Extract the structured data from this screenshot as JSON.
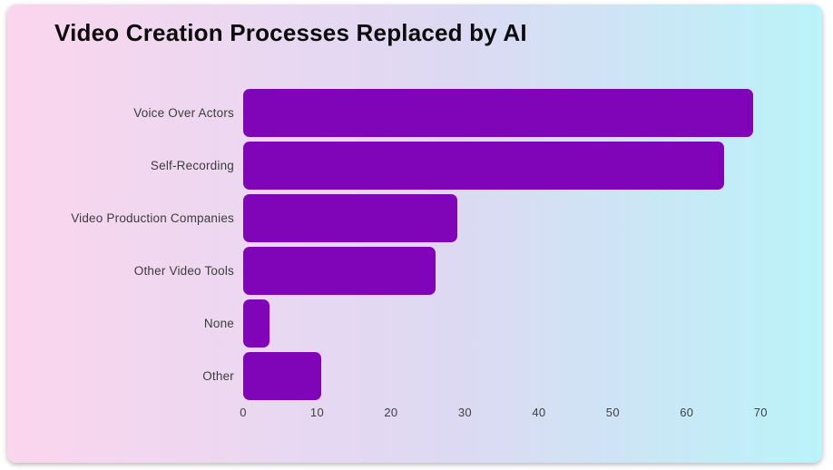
{
  "card": {
    "gradient_left": "#fbd6ee",
    "gradient_mid": "#ddd9f3",
    "gradient_right": "#baf3f9"
  },
  "colors": {
    "bar": "#8004b8",
    "title": "#0c0c0c",
    "label": "#3c3c3c",
    "tick": "#3f3f3f"
  },
  "chart_data": {
    "type": "bar",
    "orientation": "horizontal",
    "title": "Video Creation Processes Replaced by AI",
    "categories": [
      "Voice Over Actors",
      "Self-Recording",
      "Video Production Companies",
      "Other Video Tools",
      "None",
      "Other"
    ],
    "values": [
      69,
      65,
      29,
      26,
      3.5,
      10.5
    ],
    "x_ticks": [
      0,
      10,
      20,
      30,
      40,
      50,
      60,
      70
    ],
    "xlim": [
      0,
      75
    ],
    "xlabel": "",
    "ylabel": "",
    "grid": false,
    "legend": false
  }
}
